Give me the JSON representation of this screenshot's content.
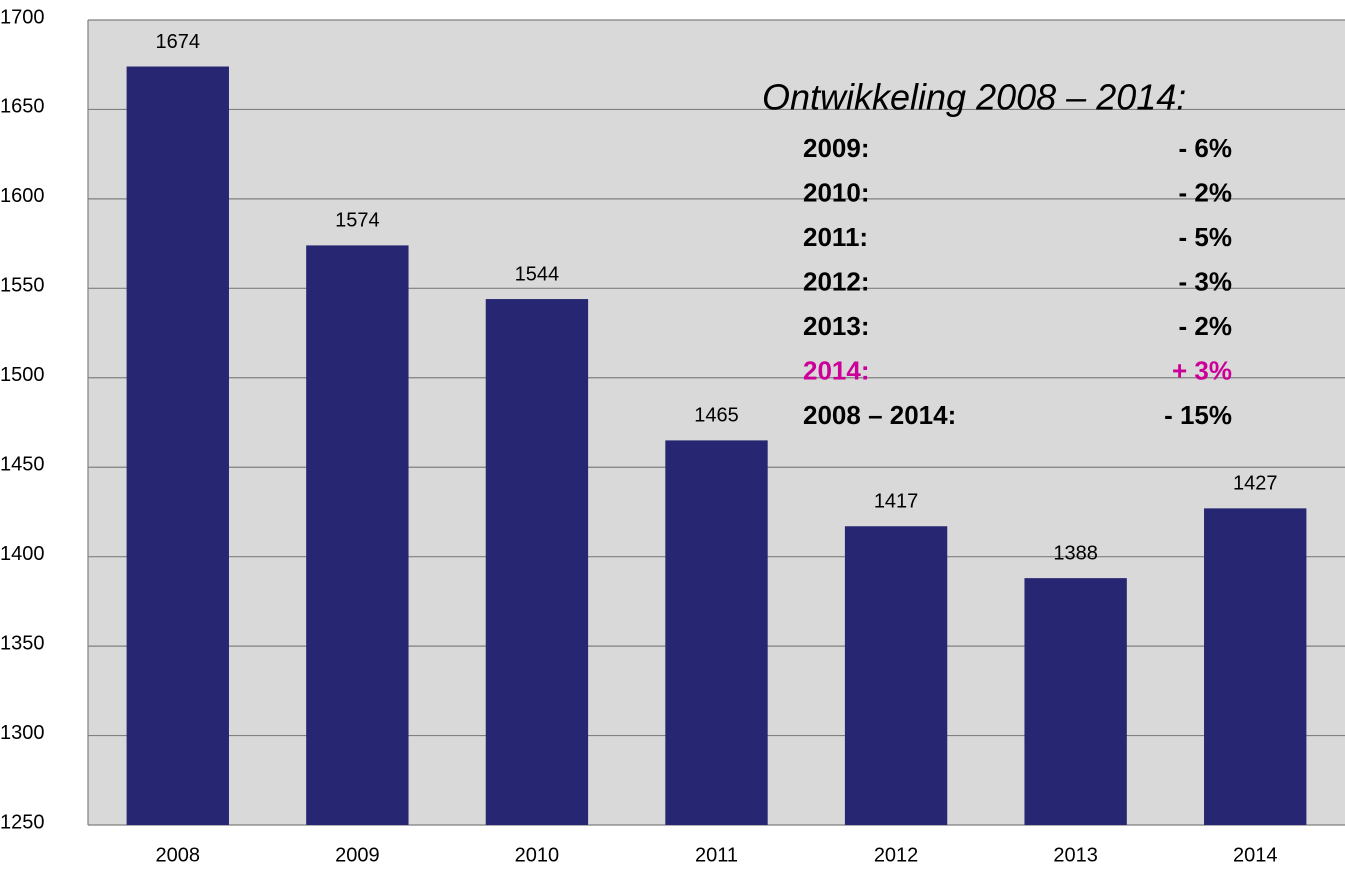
{
  "chart_data": {
    "type": "bar",
    "categories": [
      "2008",
      "2009",
      "2010",
      "2011",
      "2012",
      "2013",
      "2014"
    ],
    "values": [
      1674,
      1574,
      1544,
      1465,
      1417,
      1388,
      1427
    ],
    "color": "#262672",
    "ylim": [
      1250,
      1700
    ],
    "yticks": [
      1250,
      1300,
      1350,
      1400,
      1450,
      1500,
      1550,
      1600,
      1650,
      1700
    ],
    "grid": true,
    "annotation": {
      "title": "Ontwikkeling 2008 – 2014:",
      "rows": [
        {
          "label": "2009:",
          "value": "- 6%",
          "color": "#000000"
        },
        {
          "label": "2010:",
          "value": "- 2%",
          "color": "#000000"
        },
        {
          "label": "2011:",
          "value": "- 5%",
          "color": "#000000"
        },
        {
          "label": "2012:",
          "value": "- 3%",
          "color": "#000000"
        },
        {
          "label": "2013:",
          "value": "- 2%",
          "color": "#000000"
        },
        {
          "label": "2014:",
          "value": "+ 3%",
          "color": "#cc0099"
        },
        {
          "label": "2008 – 2014:",
          "value": "- 15%",
          "color": "#000000"
        }
      ]
    }
  }
}
